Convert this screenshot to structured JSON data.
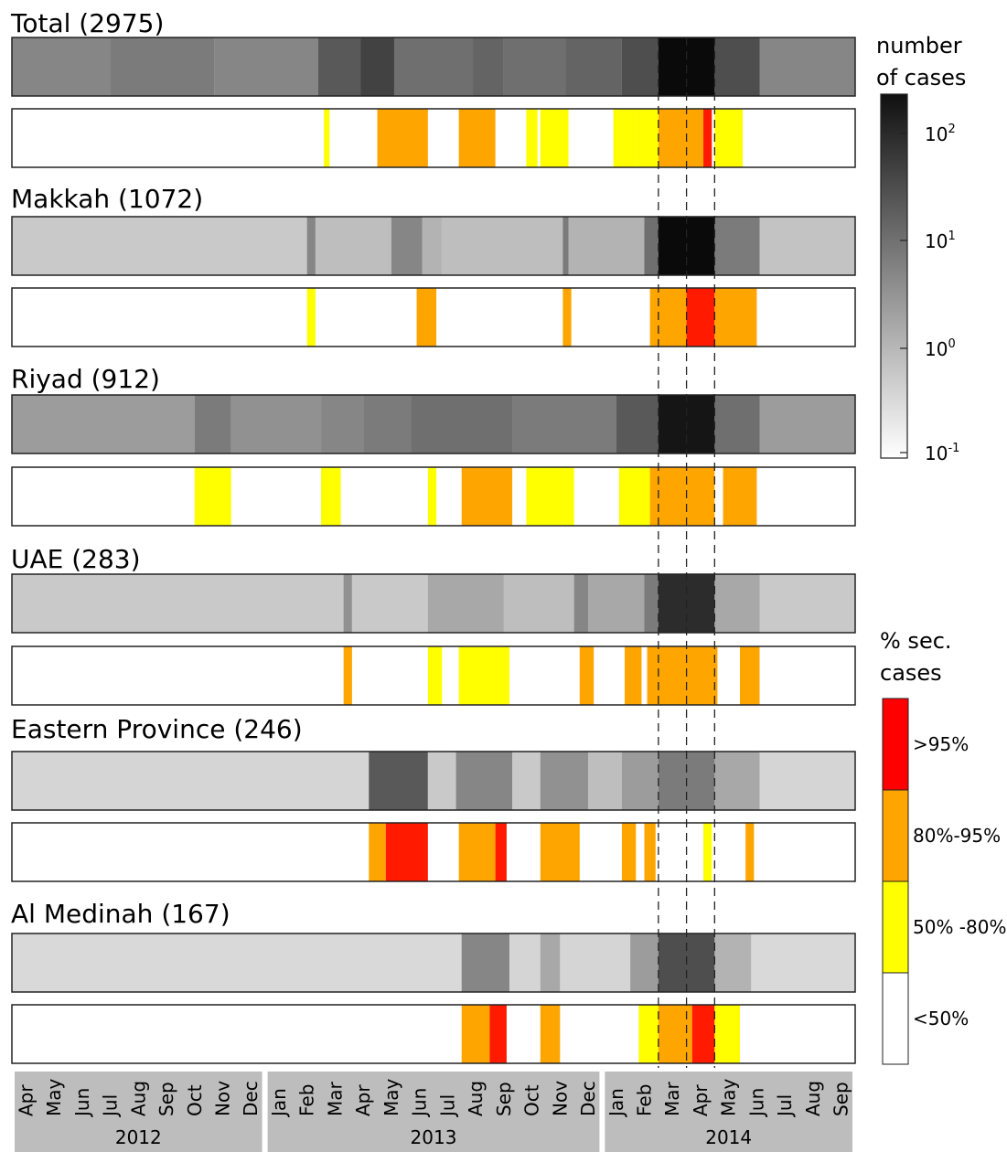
{
  "chart_data": {
    "type": "heatmap",
    "time_axis": {
      "months": [
        "Apr",
        "May",
        "Jun",
        "Jul",
        "Aug",
        "Sep",
        "Oct",
        "Nov",
        "Dec",
        "Jan",
        "Feb",
        "Mar",
        "Apr",
        "May",
        "Jun",
        "Jul",
        "Aug",
        "Sep",
        "Oct",
        "Nov",
        "Dec",
        "Jan",
        "Feb",
        "Mar",
        "Apr",
        "May",
        "Jun",
        "Jul",
        "Aug",
        "Sep"
      ],
      "years": [
        {
          "label": "2012",
          "first": 0,
          "last": 8
        },
        {
          "label": "2013",
          "first": 9,
          "last": 20
        },
        {
          "label": "2014",
          "first": 21,
          "last": 29
        }
      ]
    },
    "week_markers": [
      23.0,
      24.0,
      25.0
    ],
    "regions": [
      {
        "name": "Total",
        "count": "(2975)",
        "cases": [
          {
            "s": 0,
            "e": 3.5,
            "v": 0.45
          },
          {
            "s": 3.5,
            "e": 7.2,
            "v": 0.5
          },
          {
            "s": 7.2,
            "e": 10.9,
            "v": 0.45
          },
          {
            "s": 10.9,
            "e": 12.4,
            "v": 0.65
          },
          {
            "s": 12.4,
            "e": 13.6,
            "v": 0.75
          },
          {
            "s": 13.6,
            "e": 16.4,
            "v": 0.55
          },
          {
            "s": 16.4,
            "e": 17.5,
            "v": 0.6
          },
          {
            "s": 17.5,
            "e": 19.7,
            "v": 0.55
          },
          {
            "s": 19.7,
            "e": 21.7,
            "v": 0.6
          },
          {
            "s": 21.7,
            "e": 23.0,
            "v": 0.7
          },
          {
            "s": 23.0,
            "e": 25.0,
            "v": 1.0
          },
          {
            "s": 25.0,
            "e": 26.6,
            "v": 0.7
          },
          {
            "s": 26.6,
            "e": 30.0,
            "v": 0.45
          }
        ],
        "secondary": [
          {
            "s": 11.1,
            "e": 11.3,
            "c": "yellow"
          },
          {
            "s": 13.0,
            "e": 14.8,
            "c": "orange"
          },
          {
            "s": 15.9,
            "e": 17.2,
            "c": "orange"
          },
          {
            "s": 18.3,
            "e": 18.7,
            "c": "yellow"
          },
          {
            "s": 18.8,
            "e": 19.8,
            "c": "yellow"
          },
          {
            "s": 21.4,
            "e": 22.2,
            "c": "yellow"
          },
          {
            "s": 22.2,
            "e": 23.0,
            "c": "yellow"
          },
          {
            "s": 23.0,
            "e": 24.6,
            "c": "orange"
          },
          {
            "s": 24.6,
            "e": 24.9,
            "c": "red"
          },
          {
            "s": 25.0,
            "e": 26.0,
            "c": "yellow"
          }
        ]
      },
      {
        "name": "Makkah",
        "count": "(1072)",
        "cases": [
          {
            "s": 0,
            "e": 10.5,
            "v": 0.15
          },
          {
            "s": 10.5,
            "e": 10.8,
            "v": 0.45
          },
          {
            "s": 10.8,
            "e": 13.5,
            "v": 0.2
          },
          {
            "s": 13.5,
            "e": 14.6,
            "v": 0.45
          },
          {
            "s": 14.6,
            "e": 15.3,
            "v": 0.25
          },
          {
            "s": 15.3,
            "e": 19.6,
            "v": 0.2
          },
          {
            "s": 19.6,
            "e": 19.8,
            "v": 0.5
          },
          {
            "s": 19.8,
            "e": 22.5,
            "v": 0.25
          },
          {
            "s": 22.5,
            "e": 23.0,
            "v": 0.55
          },
          {
            "s": 23.0,
            "e": 25.0,
            "v": 1.0
          },
          {
            "s": 25.0,
            "e": 26.6,
            "v": 0.5
          },
          {
            "s": 26.6,
            "e": 30.0,
            "v": 0.18
          }
        ],
        "secondary": [
          {
            "s": 10.5,
            "e": 10.8,
            "c": "yellow"
          },
          {
            "s": 14.4,
            "e": 15.1,
            "c": "orange"
          },
          {
            "s": 19.6,
            "e": 19.9,
            "c": "orange"
          },
          {
            "s": 22.7,
            "e": 24.0,
            "c": "orange"
          },
          {
            "s": 24.0,
            "e": 25.0,
            "c": "red"
          },
          {
            "s": 25.0,
            "e": 26.5,
            "c": "orange"
          }
        ]
      },
      {
        "name": "Riyad",
        "count": "(912)",
        "cases": [
          {
            "s": 0,
            "e": 6.5,
            "v": 0.35
          },
          {
            "s": 6.5,
            "e": 7.8,
            "v": 0.5
          },
          {
            "s": 7.8,
            "e": 11.0,
            "v": 0.4
          },
          {
            "s": 11.0,
            "e": 12.5,
            "v": 0.45
          },
          {
            "s": 12.5,
            "e": 14.2,
            "v": 0.5
          },
          {
            "s": 14.2,
            "e": 17.8,
            "v": 0.55
          },
          {
            "s": 17.8,
            "e": 21.5,
            "v": 0.5
          },
          {
            "s": 21.5,
            "e": 23.0,
            "v": 0.65
          },
          {
            "s": 23.0,
            "e": 25.0,
            "v": 0.95
          },
          {
            "s": 25.0,
            "e": 26.6,
            "v": 0.55
          },
          {
            "s": 26.6,
            "e": 30.0,
            "v": 0.35
          }
        ],
        "secondary": [
          {
            "s": 6.5,
            "e": 7.8,
            "c": "yellow"
          },
          {
            "s": 11.0,
            "e": 11.7,
            "c": "yellow"
          },
          {
            "s": 14.8,
            "e": 15.1,
            "c": "yellow"
          },
          {
            "s": 16.0,
            "e": 17.8,
            "c": "orange"
          },
          {
            "s": 18.3,
            "e": 20.0,
            "c": "yellow"
          },
          {
            "s": 21.6,
            "e": 22.7,
            "c": "yellow"
          },
          {
            "s": 22.7,
            "e": 24.0,
            "c": "orange"
          },
          {
            "s": 24.0,
            "e": 25.0,
            "c": "orange"
          },
          {
            "s": 25.3,
            "e": 26.5,
            "c": "orange"
          }
        ]
      },
      {
        "name": "UAE",
        "count": "(283)",
        "cases": [
          {
            "s": 0,
            "e": 11.8,
            "v": 0.15
          },
          {
            "s": 11.8,
            "e": 12.1,
            "v": 0.4
          },
          {
            "s": 12.1,
            "e": 14.8,
            "v": 0.15
          },
          {
            "s": 14.8,
            "e": 17.5,
            "v": 0.3
          },
          {
            "s": 17.5,
            "e": 20.0,
            "v": 0.2
          },
          {
            "s": 20.0,
            "e": 20.5,
            "v": 0.45
          },
          {
            "s": 20.5,
            "e": 22.5,
            "v": 0.3
          },
          {
            "s": 22.5,
            "e": 23.0,
            "v": 0.5
          },
          {
            "s": 23.0,
            "e": 25.0,
            "v": 0.85
          },
          {
            "s": 25.0,
            "e": 26.6,
            "v": 0.3
          },
          {
            "s": 26.6,
            "e": 30.0,
            "v": 0.15
          }
        ],
        "secondary": [
          {
            "s": 11.8,
            "e": 12.1,
            "c": "orange"
          },
          {
            "s": 14.8,
            "e": 15.3,
            "c": "yellow"
          },
          {
            "s": 15.9,
            "e": 17.7,
            "c": "yellow"
          },
          {
            "s": 20.2,
            "e": 20.7,
            "c": "orange"
          },
          {
            "s": 21.8,
            "e": 22.4,
            "c": "orange"
          },
          {
            "s": 22.6,
            "e": 25.1,
            "c": "orange"
          },
          {
            "s": 25.9,
            "e": 26.6,
            "c": "orange"
          }
        ]
      },
      {
        "name": "Eastern Province",
        "count": "(246)",
        "cases": [
          {
            "s": 0,
            "e": 12.7,
            "v": 0.1
          },
          {
            "s": 12.7,
            "e": 14.8,
            "v": 0.65
          },
          {
            "s": 14.8,
            "e": 15.8,
            "v": 0.15
          },
          {
            "s": 15.8,
            "e": 17.8,
            "v": 0.45
          },
          {
            "s": 17.8,
            "e": 18.8,
            "v": 0.15
          },
          {
            "s": 18.8,
            "e": 20.5,
            "v": 0.4
          },
          {
            "s": 20.5,
            "e": 21.7,
            "v": 0.2
          },
          {
            "s": 21.7,
            "e": 23.0,
            "v": 0.35
          },
          {
            "s": 23.0,
            "e": 25.0,
            "v": 0.5
          },
          {
            "s": 25.0,
            "e": 26.6,
            "v": 0.3
          },
          {
            "s": 26.6,
            "e": 30.0,
            "v": 0.1
          }
        ],
        "secondary": [
          {
            "s": 12.7,
            "e": 13.3,
            "c": "orange"
          },
          {
            "s": 13.3,
            "e": 14.8,
            "c": "red"
          },
          {
            "s": 15.9,
            "e": 17.2,
            "c": "orange"
          },
          {
            "s": 17.2,
            "e": 17.6,
            "c": "red"
          },
          {
            "s": 18.8,
            "e": 20.2,
            "c": "orange"
          },
          {
            "s": 21.7,
            "e": 22.2,
            "c": "orange"
          },
          {
            "s": 22.5,
            "e": 22.9,
            "c": "orange"
          },
          {
            "s": 24.6,
            "e": 24.9,
            "c": "yellow"
          },
          {
            "s": 26.1,
            "e": 26.4,
            "c": "orange"
          }
        ]
      },
      {
        "name": "Al Medinah",
        "count": "(167)",
        "cases": [
          {
            "s": 0,
            "e": 16.0,
            "v": 0.08
          },
          {
            "s": 16.0,
            "e": 17.7,
            "v": 0.45
          },
          {
            "s": 17.7,
            "e": 18.8,
            "v": 0.1
          },
          {
            "s": 18.8,
            "e": 19.5,
            "v": 0.3
          },
          {
            "s": 19.5,
            "e": 22.0,
            "v": 0.1
          },
          {
            "s": 22.0,
            "e": 23.0,
            "v": 0.35
          },
          {
            "s": 23.0,
            "e": 25.0,
            "v": 0.7
          },
          {
            "s": 25.0,
            "e": 26.3,
            "v": 0.25
          },
          {
            "s": 26.3,
            "e": 30.0,
            "v": 0.08
          }
        ],
        "secondary": [
          {
            "s": 16.0,
            "e": 17.0,
            "c": "orange"
          },
          {
            "s": 17.0,
            "e": 17.6,
            "c": "red"
          },
          {
            "s": 18.8,
            "e": 19.5,
            "c": "orange"
          },
          {
            "s": 22.3,
            "e": 23.0,
            "c": "yellow"
          },
          {
            "s": 23.0,
            "e": 24.2,
            "c": "orange"
          },
          {
            "s": 24.2,
            "e": 25.0,
            "c": "red"
          },
          {
            "s": 25.0,
            "e": 25.9,
            "c": "yellow"
          }
        ]
      }
    ],
    "case_colorbar": {
      "title": [
        "number",
        "of cases"
      ],
      "ticks": [
        {
          "base": "10",
          "exp": "2"
        },
        {
          "base": "10",
          "exp": "1"
        },
        {
          "base": "10",
          "exp": "0"
        },
        {
          "base": "10",
          "exp": "-1"
        }
      ],
      "scale": "log"
    },
    "secondary_legend": {
      "title": [
        "% sec.",
        "cases"
      ],
      "categories": [
        {
          "label": ">95%",
          "color": "#ff0000"
        },
        {
          "label": "80%-95%",
          "color": "#ffa500"
        },
        {
          "label": "50% -80%",
          "color": "#ffff00"
        },
        {
          "label": "<50%",
          "color": "#ffffff"
        }
      ]
    },
    "colors": {
      "yellow": "#ffff00",
      "orange": "#ffa500",
      "red": "#ff1a00"
    }
  }
}
